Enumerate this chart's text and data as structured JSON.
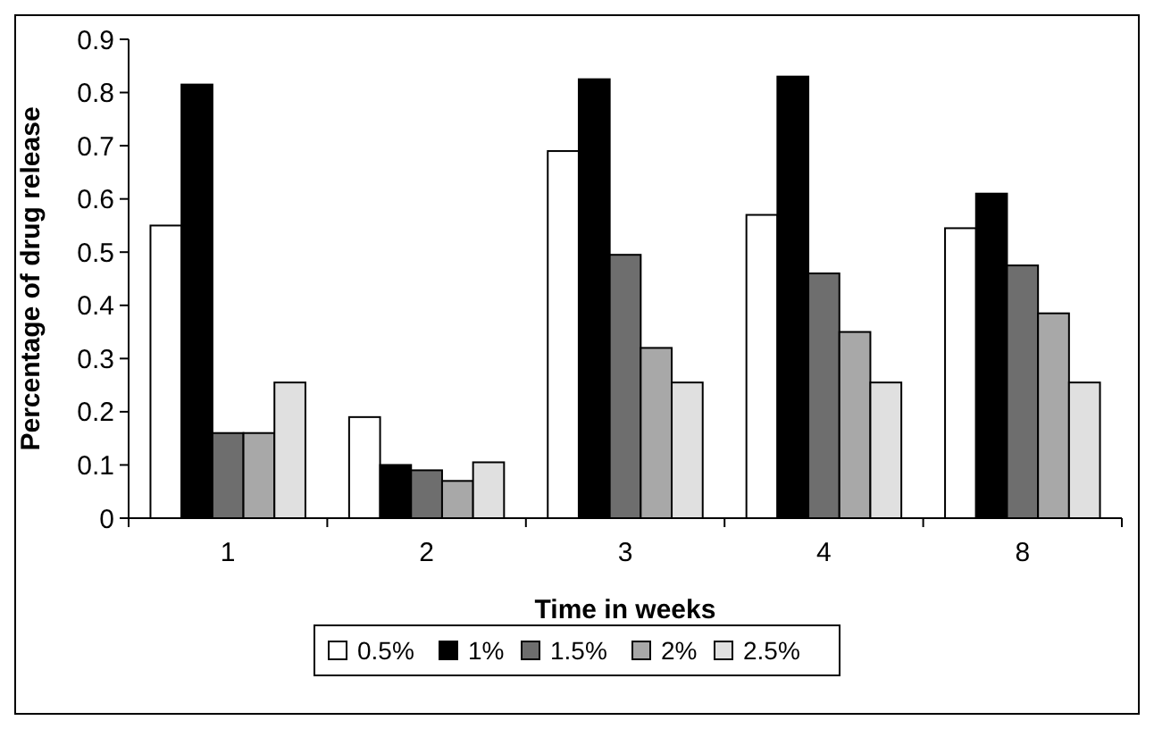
{
  "chart_data": {
    "type": "bar",
    "xlabel": "Time in weeks",
    "ylabel": "Percentage of drug release",
    "categories": [
      "1",
      "2",
      "3",
      "4",
      "8"
    ],
    "series": [
      {
        "name": "0.5%",
        "color": "#ffffff",
        "values": [
          0.55,
          0.19,
          0.69,
          0.57,
          0.545
        ]
      },
      {
        "name": "1%",
        "color": "#000000",
        "values": [
          0.815,
          0.1,
          0.825,
          0.83,
          0.61
        ]
      },
      {
        "name": "1.5%",
        "color": "#6e6e6e",
        "values": [
          0.16,
          0.09,
          0.495,
          0.46,
          0.475
        ]
      },
      {
        "name": "2%",
        "color": "#a8a8a8",
        "values": [
          0.16,
          0.07,
          0.32,
          0.35,
          0.385
        ]
      },
      {
        "name": "2.5%",
        "color": "#e0e0e0",
        "values": [
          0.255,
          0.105,
          0.255,
          0.255,
          0.255
        ]
      }
    ],
    "ylim": [
      0,
      0.9
    ],
    "yticks": [
      0,
      {
        "value": 0.1,
        "label": "0.1"
      },
      {
        "value": 0.2,
        "label": "0.2"
      },
      {
        "value": 0.3,
        "label": "0.3"
      },
      {
        "value": 0.4,
        "label": "0.4"
      },
      {
        "value": 0.5,
        "label": "0.5"
      },
      {
        "value": 0.6,
        "label": "0.6"
      },
      {
        "value": 0.7,
        "label": "0.7"
      },
      {
        "value": 0.8,
        "label": "0.8"
      },
      {
        "value": 0.9,
        "label": "0.9"
      }
    ],
    "grid": false,
    "legend": "bottom"
  }
}
